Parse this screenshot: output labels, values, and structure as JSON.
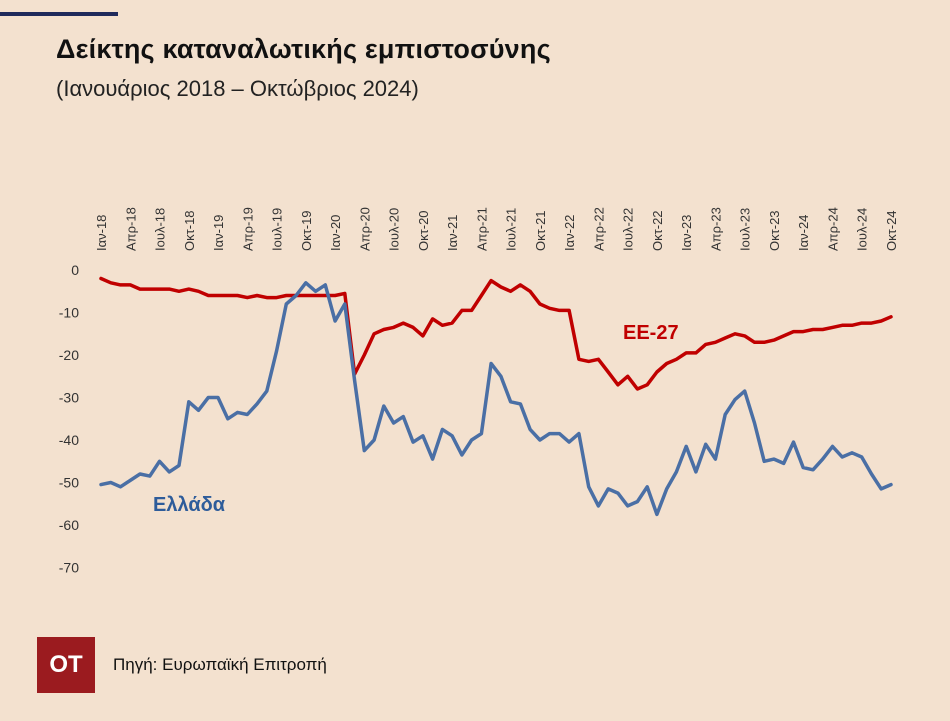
{
  "header": {
    "title": "Δείκτης καταναλωτικής εμπιστοσύνης",
    "subtitle": "(Ιανουάριος 2018 – Οκτώβριος 2024)"
  },
  "footer": {
    "logo_text": "ΟΤ",
    "source": "Πηγή: Ευρωπαϊκή Επιτροπή"
  },
  "chart_data": {
    "type": "line",
    "x": [
      "Ιαν-18",
      "Φεβ-18",
      "Μαρ-18",
      "Απρ-18",
      "Μαϊ-18",
      "Ιουν-18",
      "Ιουλ-18",
      "Αυγ-18",
      "Σεπ-18",
      "Οκτ-18",
      "Νοε-18",
      "Δεκ-18",
      "Ιαν-19",
      "Φεβ-19",
      "Μαρ-19",
      "Απρ-19",
      "Μαϊ-19",
      "Ιουν-19",
      "Ιουλ-19",
      "Αυγ-19",
      "Σεπ-19",
      "Οκτ-19",
      "Νοε-19",
      "Δεκ-19",
      "Ιαν-20",
      "Φεβ-20",
      "Μαρ-20",
      "Απρ-20",
      "Μαϊ-20",
      "Ιουν-20",
      "Ιουλ-20",
      "Αυγ-20",
      "Σεπ-20",
      "Οκτ-20",
      "Νοε-20",
      "Δεκ-20",
      "Ιαν-21",
      "Φεβ-21",
      "Μαρ-21",
      "Απρ-21",
      "Μαϊ-21",
      "Ιουν-21",
      "Ιουλ-21",
      "Αυγ-21",
      "Σεπ-21",
      "Οκτ-21",
      "Νοε-21",
      "Δεκ-21",
      "Ιαν-22",
      "Φεβ-22",
      "Μαρ-22",
      "Απρ-22",
      "Μαϊ-22",
      "Ιουν-22",
      "Ιουλ-22",
      "Αυγ-22",
      "Σεπ-22",
      "Οκτ-22",
      "Νοε-22",
      "Δεκ-22",
      "Ιαν-23",
      "Φεβ-23",
      "Μαρ-23",
      "Απρ-23",
      "Μαϊ-23",
      "Ιουν-23",
      "Ιουλ-23",
      "Αυγ-23",
      "Σεπ-23",
      "Οκτ-23",
      "Νοε-23",
      "Δεκ-23",
      "Ιαν-24",
      "Φεβ-24",
      "Μαρ-24",
      "Απρ-24",
      "Μαϊ-24",
      "Ιουν-24",
      "Ιουλ-24",
      "Αυγ-24",
      "Σεπ-24",
      "Οκτ-24"
    ],
    "tick_labels": [
      "Ιαν-18",
      "Απρ-18",
      "Ιουλ-18",
      "Οκτ-18",
      "Ιαν-19",
      "Απρ-19",
      "Ιουλ-19",
      "Οκτ-19",
      "Ιαν-20",
      "Απρ-20",
      "Ιουλ-20",
      "Οκτ-20",
      "Ιαν-21",
      "Απρ-21",
      "Ιουλ-21",
      "Οκτ-21",
      "Ιαν-22",
      "Απρ-22",
      "Ιουλ-22",
      "Οκτ-22",
      "Ιαν-23",
      "Απρ-23",
      "Ιουλ-23",
      "Οκτ-23",
      "Ιαν-24",
      "Απρ-24",
      "Ιουλ-24",
      "Οκτ-24"
    ],
    "y_ticks": [
      0,
      -10,
      -20,
      -30,
      -40,
      -50,
      -60,
      -70
    ],
    "ylim": [
      -72,
      0
    ],
    "grid": false,
    "series": [
      {
        "name": "ΕΕ-27",
        "color": "#c00000",
        "values": [
          -2,
          -3,
          -3.5,
          -3.5,
          -4.5,
          -4.5,
          -4.5,
          -4.5,
          -5,
          -4.5,
          -5,
          -6,
          -6,
          -6,
          -6,
          -6.5,
          -6,
          -6.5,
          -6.5,
          -6,
          -6,
          -6,
          -6,
          -6,
          -6,
          -5.5,
          -24.5,
          -20,
          -15,
          -14,
          -13.5,
          -12.5,
          -13.5,
          -15.5,
          -11.5,
          -13,
          -12.5,
          -9.5,
          -9.5,
          -6,
          -2.5,
          -4,
          -5,
          -3.5,
          -5,
          -8,
          -9,
          -9.5,
          -9.5,
          -21,
          -21.5,
          -21,
          -24,
          -27,
          -25,
          -28,
          -27,
          -24,
          -22,
          -21,
          -19.5,
          -19.5,
          -17.5,
          -17,
          -16,
          -15,
          -15.5,
          -17,
          -17,
          -16.5,
          -15.5,
          -14.5,
          -14.5,
          -14,
          -14,
          -13.5,
          -13,
          -13,
          -12.5,
          -12.5,
          -12,
          -11
        ]
      },
      {
        "name": "Ελλάδα",
        "color": "#4a6fa5",
        "values": [
          -50.5,
          -50,
          -51,
          -49.5,
          -48,
          -48.5,
          -45,
          -47.5,
          -46,
          -31,
          -33,
          -30,
          -30,
          -35,
          -33.5,
          -34,
          -31.5,
          -28.5,
          -19,
          -8,
          -6,
          -3,
          -5,
          -3.5,
          -12,
          -8,
          -26,
          -42.5,
          -40,
          -32,
          -36,
          -34.5,
          -40.5,
          -39,
          -44.5,
          -37.5,
          -39,
          -43.5,
          -40,
          -38.5,
          -22,
          -25,
          -31,
          -31.5,
          -37.5,
          -40,
          -38.5,
          -38.5,
          -40.5,
          -38.5,
          -51,
          -55.5,
          -51.5,
          -52.5,
          -55.5,
          -54.5,
          -51,
          -57.5,
          -51.5,
          -47.5,
          -41.5,
          -47.5,
          -41,
          -44.5,
          -34,
          -30.5,
          -28.5,
          -36,
          -45,
          -44.5,
          -45.5,
          -40.5,
          -46.5,
          -47,
          -44.5,
          -41.5,
          -44,
          -43,
          -44,
          -48,
          -51.5,
          -50.5
        ]
      }
    ]
  }
}
